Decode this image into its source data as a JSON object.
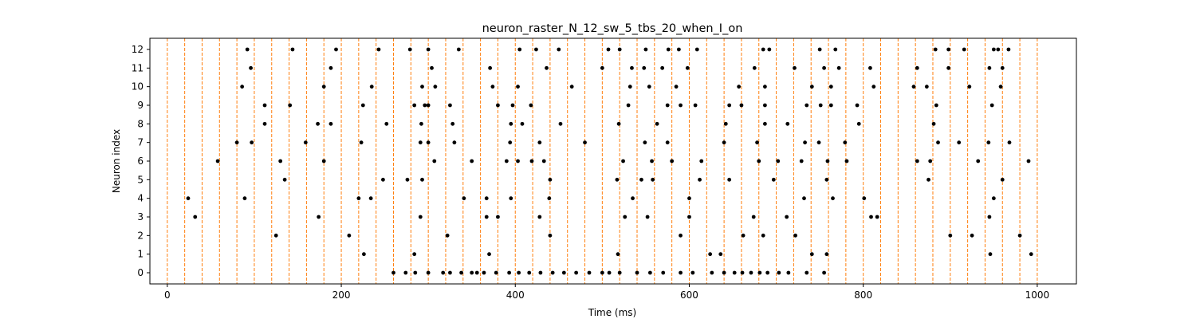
{
  "chart_data": {
    "type": "scatter",
    "title": "neuron_raster_N_12_sw_5_tbs_20_when_I_on",
    "xlabel": "Time (ms)",
    "ylabel": "Neuron index",
    "xlim": [
      -20,
      1045
    ],
    "ylim": [
      -0.6,
      12.6
    ],
    "xticks": [
      0,
      200,
      400,
      600,
      800,
      1000
    ],
    "yticks": [
      0,
      1,
      2,
      3,
      4,
      5,
      6,
      7,
      8,
      9,
      10,
      11,
      12
    ],
    "grid": false,
    "marker_color": "#000000",
    "vline_color": "#ff7f0e",
    "vlines": [
      0,
      20,
      40,
      60,
      80,
      100,
      120,
      140,
      160,
      180,
      200,
      220,
      240,
      260,
      280,
      300,
      320,
      340,
      360,
      380,
      400,
      420,
      440,
      460,
      480,
      500,
      520,
      540,
      560,
      580,
      600,
      620,
      640,
      660,
      680,
      700,
      720,
      740,
      760,
      780,
      800,
      820,
      840,
      860,
      880,
      900,
      920,
      940,
      960,
      980,
      1000
    ],
    "series": [
      {
        "neuron": 0,
        "times": [
          260,
          274,
          285,
          300,
          317,
          325,
          338,
          350,
          356,
          364,
          378,
          393,
          404,
          416,
          429,
          443,
          456,
          470,
          485,
          500,
          508,
          520,
          540,
          555,
          570,
          590,
          604,
          626,
          640,
          652,
          661,
          671,
          681,
          690,
          703,
          714,
          735,
          755
        ]
      },
      {
        "neuron": 1,
        "times": [
          226,
          284,
          370,
          518,
          624,
          636,
          741,
          758,
          946,
          993
        ]
      },
      {
        "neuron": 2,
        "times": [
          125,
          209,
          322,
          440,
          590,
          662,
          685,
          722,
          900,
          925,
          980
        ]
      },
      {
        "neuron": 3,
        "times": [
          32,
          174,
          291,
          367,
          380,
          428,
          526,
          552,
          600,
          674,
          712,
          809,
          816,
          945
        ]
      },
      {
        "neuron": 4,
        "times": [
          24,
          89,
          220,
          234,
          341,
          367,
          395,
          439,
          535,
          600,
          732,
          765,
          801,
          950
        ]
      },
      {
        "neuron": 5,
        "times": [
          135,
          248,
          276,
          293,
          440,
          517,
          545,
          558,
          612,
          646,
          697,
          758,
          875,
          960
        ]
      },
      {
        "neuron": 6,
        "times": [
          58,
          130,
          180,
          307,
          350,
          390,
          403,
          419,
          433,
          524,
          557,
          580,
          614,
          680,
          702,
          729,
          759,
          781,
          862,
          877,
          932,
          990
        ]
      },
      {
        "neuron": 7,
        "times": [
          80,
          97,
          159,
          223,
          291,
          300,
          330,
          394,
          428,
          480,
          549,
          575,
          640,
          678,
          733,
          749,
          779,
          886,
          910,
          944,
          968
        ]
      },
      {
        "neuron": 8,
        "times": [
          112,
          173,
          188,
          252,
          292,
          328,
          395,
          408,
          452,
          519,
          563,
          642,
          687,
          713,
          795,
          881
        ]
      },
      {
        "neuron": 9,
        "times": [
          112,
          141,
          225,
          284,
          296,
          300,
          325,
          380,
          397,
          418,
          530,
          575,
          590,
          607,
          646,
          660,
          687,
          735,
          751,
          763,
          793,
          884,
          948
        ]
      },
      {
        "neuron": 10,
        "times": [
          86,
          180,
          235,
          293,
          308,
          374,
          403,
          465,
          532,
          554,
          585,
          657,
          687,
          741,
          763,
          812,
          858,
          873,
          922,
          958
        ]
      },
      {
        "neuron": 11,
        "times": [
          96,
          188,
          304,
          371,
          436,
          500,
          534,
          548,
          569,
          598,
          675,
          721,
          755,
          772,
          808,
          862,
          898,
          945,
          960
        ]
      },
      {
        "neuron": 12,
        "times": [
          92,
          144,
          194,
          243,
          279,
          300,
          335,
          405,
          424,
          450,
          507,
          520,
          550,
          576,
          588,
          609,
          685,
          692,
          750,
          768,
          883,
          898,
          916,
          950,
          955,
          967
        ]
      }
    ]
  }
}
